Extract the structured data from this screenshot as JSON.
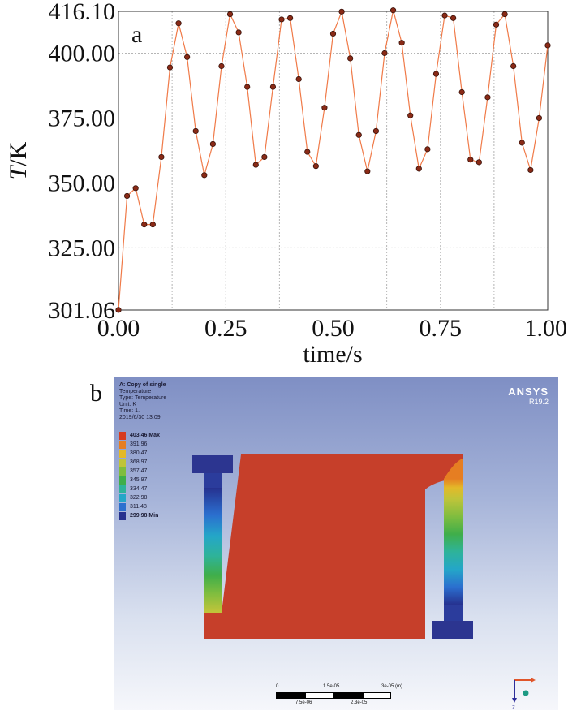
{
  "chart_data": {
    "type": "line",
    "panel_label": "a",
    "xlabel": "time/s",
    "ylabel_italic": "T",
    "ylabel_rest": "/K",
    "xlim": [
      0,
      1
    ],
    "ylim": [
      301.06,
      416.1
    ],
    "x_tick_values": [
      0,
      0.25,
      0.5,
      0.75,
      1.0
    ],
    "x_tick_labels": [
      "0.00",
      "0.25",
      "0.50",
      "0.75",
      "1.00"
    ],
    "y_tick_values": [
      301.06,
      325,
      350,
      375,
      400,
      416.1
    ],
    "y_tick_labels": [
      "301.06",
      "325.00",
      "350.00",
      "375.00",
      "400.00",
      "416.10"
    ],
    "grid": true,
    "line_color": "#f07a48",
    "marker_color": "#8a2a16",
    "series": [
      {
        "x": [
          0.0,
          0.02,
          0.04,
          0.06,
          0.08,
          0.1,
          0.12,
          0.14,
          0.16,
          0.18,
          0.2,
          0.22,
          0.24,
          0.26,
          0.28,
          0.3,
          0.32,
          0.34,
          0.36,
          0.38,
          0.4,
          0.42,
          0.44,
          0.46,
          0.48,
          0.5,
          0.52,
          0.54,
          0.56,
          0.58,
          0.6,
          0.62,
          0.64,
          0.66,
          0.68,
          0.7,
          0.72,
          0.74,
          0.76,
          0.78,
          0.8,
          0.82,
          0.84,
          0.86,
          0.88,
          0.9,
          0.92,
          0.94,
          0.96,
          0.98,
          1.0
        ],
        "values": [
          301.1,
          345.0,
          348.0,
          334.0,
          334.0,
          360.0,
          394.5,
          411.5,
          398.5,
          370.0,
          353.0,
          365.0,
          395.0,
          415.0,
          408.0,
          387.0,
          357.0,
          360.0,
          387.0,
          413.0,
          413.5,
          390.0,
          362.0,
          356.5,
          379.0,
          407.5,
          416.0,
          398.0,
          368.5,
          354.5,
          370.0,
          400.0,
          416.5,
          404.0,
          376.0,
          355.5,
          363.0,
          392.0,
          414.5,
          413.5,
          385.0,
          359.0,
          358.0,
          383.0,
          411.0,
          415.0,
          395.0,
          365.5,
          355.0,
          375.0,
          403.0
        ]
      }
    ]
  },
  "ansys": {
    "panel_label": "b",
    "info": [
      "A: Copy of single",
      "Temperature",
      "Type: Temperature",
      "Unit: K",
      "Time: 1.",
      "2019/6/30 13:09"
    ],
    "brand": "ANSYS",
    "version": "R19.2",
    "legend": [
      {
        "label": "403.46 Max",
        "color": "#d63b1f",
        "bold": true
      },
      {
        "label": "391.96",
        "color": "#e67e22"
      },
      {
        "label": "380.47",
        "color": "#e3b929"
      },
      {
        "label": "368.97",
        "color": "#bfc43a"
      },
      {
        "label": "357.47",
        "color": "#7fbd3f"
      },
      {
        "label": "345.97",
        "color": "#3fae4a"
      },
      {
        "label": "334.47",
        "color": "#2eb39a"
      },
      {
        "label": "322.98",
        "color": "#24a6c8"
      },
      {
        "label": "311.48",
        "color": "#2b6fcf"
      },
      {
        "label": "299.98 Min",
        "color": "#26318f",
        "bold": true
      }
    ],
    "scale_labels_top": [
      "0",
      "1.5e-05",
      "3e-05 (m)"
    ],
    "scale_labels_bottom": [
      "7.5e-06",
      "2.3e-05"
    ],
    "axis_z_label": "Z"
  }
}
